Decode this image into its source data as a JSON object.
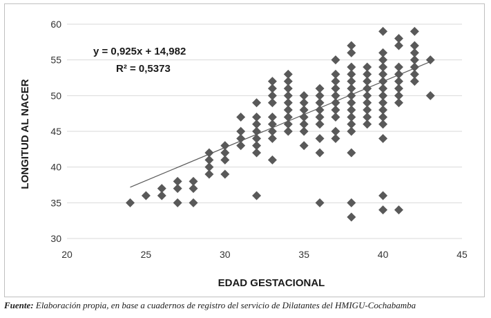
{
  "chart_data": {
    "type": "scatter",
    "xlabel": "EDAD GESTACIONAL",
    "ylabel": "LONGITUD AL NACER",
    "xlim": [
      20,
      45
    ],
    "ylim": [
      30,
      60
    ],
    "xticks": [
      20,
      25,
      30,
      35,
      40,
      45
    ],
    "yticks": [
      30,
      35,
      40,
      45,
      50,
      55,
      60
    ],
    "grid": "horizontal",
    "legend": "none",
    "marker": "diamond",
    "marker_color": "#595959",
    "trendline": {
      "type": "linear",
      "slope": 0.925,
      "intercept": 14.982,
      "x_range": [
        24,
        43
      ],
      "color": "#595959",
      "equation_label": "y = 0,925x + 14,982",
      "r2_label": "R² = 0,5373"
    },
    "points": [
      [
        24,
        35
      ],
      [
        25,
        36
      ],
      [
        26,
        36
      ],
      [
        26,
        37
      ],
      [
        27,
        35
      ],
      [
        27,
        37
      ],
      [
        27,
        38
      ],
      [
        28,
        35
      ],
      [
        28,
        37
      ],
      [
        28,
        38
      ],
      [
        29,
        39
      ],
      [
        29,
        40
      ],
      [
        29,
        41
      ],
      [
        29,
        42
      ],
      [
        30,
        39
      ],
      [
        30,
        41
      ],
      [
        30,
        42
      ],
      [
        30,
        43
      ],
      [
        31,
        43
      ],
      [
        31,
        44
      ],
      [
        31,
        45
      ],
      [
        31,
        47
      ],
      [
        32,
        36
      ],
      [
        32,
        42
      ],
      [
        32,
        43
      ],
      [
        32,
        44
      ],
      [
        32,
        45
      ],
      [
        32,
        46
      ],
      [
        32,
        47
      ],
      [
        32,
        49
      ],
      [
        33,
        41
      ],
      [
        33,
        44
      ],
      [
        33,
        45
      ],
      [
        33,
        46
      ],
      [
        33,
        47
      ],
      [
        33,
        49
      ],
      [
        33,
        50
      ],
      [
        33,
        51
      ],
      [
        33,
        52
      ],
      [
        34,
        45
      ],
      [
        34,
        46
      ],
      [
        34,
        47
      ],
      [
        34,
        48
      ],
      [
        34,
        49
      ],
      [
        34,
        50
      ],
      [
        34,
        51
      ],
      [
        34,
        52
      ],
      [
        34,
        53
      ],
      [
        35,
        43
      ],
      [
        35,
        45
      ],
      [
        35,
        46
      ],
      [
        35,
        47
      ],
      [
        35,
        48
      ],
      [
        35,
        49
      ],
      [
        35,
        50
      ],
      [
        36,
        35
      ],
      [
        36,
        42
      ],
      [
        36,
        44
      ],
      [
        36,
        46
      ],
      [
        36,
        47
      ],
      [
        36,
        48
      ],
      [
        36,
        49
      ],
      [
        36,
        50
      ],
      [
        36,
        51
      ],
      [
        37,
        44
      ],
      [
        37,
        45
      ],
      [
        37,
        47
      ],
      [
        37,
        48
      ],
      [
        37,
        49
      ],
      [
        37,
        50
      ],
      [
        37,
        51
      ],
      [
        37,
        52
      ],
      [
        37,
        53
      ],
      [
        37,
        55
      ],
      [
        38,
        33
      ],
      [
        38,
        35
      ],
      [
        38,
        42
      ],
      [
        38,
        45
      ],
      [
        38,
        46
      ],
      [
        38,
        47
      ],
      [
        38,
        48
      ],
      [
        38,
        49
      ],
      [
        38,
        50
      ],
      [
        38,
        51
      ],
      [
        38,
        52
      ],
      [
        38,
        53
      ],
      [
        38,
        54
      ],
      [
        38,
        56
      ],
      [
        38,
        57
      ],
      [
        39,
        46
      ],
      [
        39,
        47
      ],
      [
        39,
        48
      ],
      [
        39,
        49
      ],
      [
        39,
        50
      ],
      [
        39,
        51
      ],
      [
        39,
        52
      ],
      [
        39,
        53
      ],
      [
        39,
        54
      ],
      [
        40,
        34
      ],
      [
        40,
        36
      ],
      [
        40,
        44
      ],
      [
        40,
        46
      ],
      [
        40,
        47
      ],
      [
        40,
        48
      ],
      [
        40,
        49
      ],
      [
        40,
        50
      ],
      [
        40,
        51
      ],
      [
        40,
        52
      ],
      [
        40,
        53
      ],
      [
        40,
        54
      ],
      [
        40,
        55
      ],
      [
        40,
        56
      ],
      [
        40,
        59
      ],
      [
        41,
        34
      ],
      [
        41,
        49
      ],
      [
        41,
        50
      ],
      [
        41,
        51
      ],
      [
        41,
        52
      ],
      [
        41,
        53
      ],
      [
        41,
        54
      ],
      [
        41,
        57
      ],
      [
        41,
        58
      ],
      [
        42,
        52
      ],
      [
        42,
        53
      ],
      [
        42,
        54
      ],
      [
        42,
        55
      ],
      [
        42,
        56
      ],
      [
        42,
        57
      ],
      [
        42,
        59
      ],
      [
        43,
        50
      ],
      [
        43,
        55
      ]
    ]
  },
  "caption": {
    "label": "Fuente:",
    "text": "Elaboración propia, en base a cuadernos de registro del servicio de Dilatantes del HMIGU-Cochabamba"
  }
}
